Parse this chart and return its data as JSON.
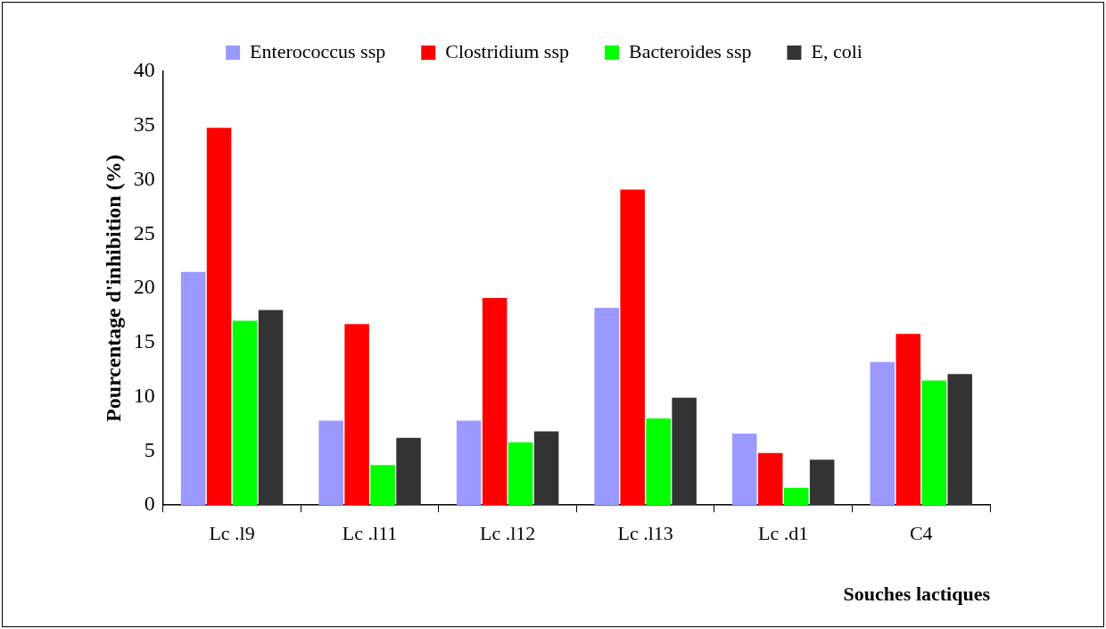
{
  "chart_data": {
    "type": "bar",
    "xlabel": "Souches lactiques",
    "ylabel": "Pourcentage d'inhibition (%)",
    "categories": [
      "Lc .l9",
      "Lc .l11",
      "Lc .l12",
      "Lc .l13",
      "Lc .d1",
      "C4"
    ],
    "series": [
      {
        "name": "Enterococcus ssp",
        "color": "#9999ff",
        "values": [
          21.5,
          7.8,
          7.8,
          18.2,
          6.6,
          13.2
        ]
      },
      {
        "name": "Clostridium ssp",
        "color": "#ff0000",
        "values": [
          34.8,
          16.7,
          19.1,
          29.1,
          4.8,
          15.8
        ]
      },
      {
        "name": "Bacteroides ssp",
        "color": "#00ff00",
        "values": [
          17,
          3.7,
          5.8,
          8,
          1.6,
          11.5
        ]
      },
      {
        "name": "E, coli",
        "color": "#333333",
        "values": [
          18,
          6.2,
          6.8,
          9.9,
          4.2,
          12.1
        ]
      }
    ],
    "ylim": [
      0,
      40
    ],
    "yticks": [
      0,
      5,
      10,
      15,
      20,
      25,
      30,
      35,
      40
    ],
    "grid": false,
    "legend": "top"
  }
}
